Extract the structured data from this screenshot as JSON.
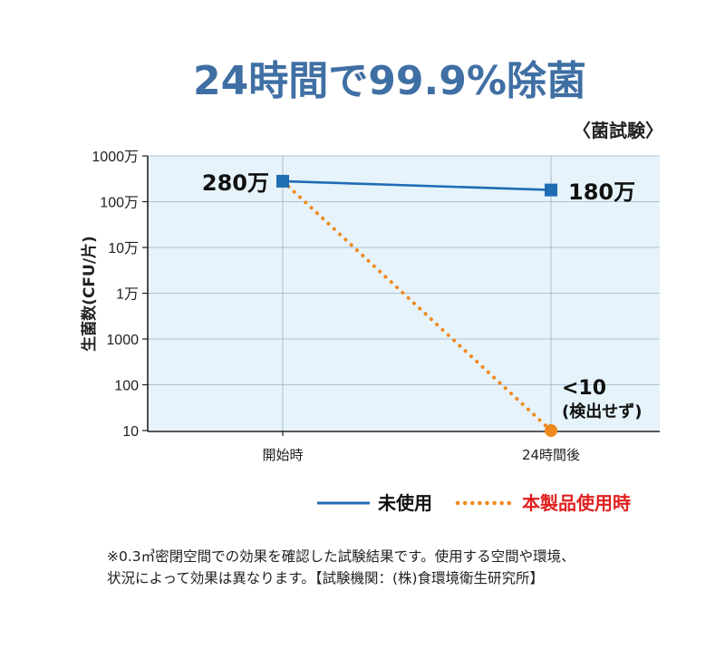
{
  "chart_data": {
    "type": "line",
    "title": "24時間で99.9%除菌",
    "subtitle": "〈菌試験〉",
    "ylabel": "生菌数(CFU/片)",
    "xlabel": "",
    "categories": [
      "開始時",
      "24時間後"
    ],
    "y_scale": "log",
    "ylim": [
      10,
      10000000
    ],
    "y_ticks": [
      {
        "value": 10000000,
        "label": "1000万"
      },
      {
        "value": 1000000,
        "label": "100万"
      },
      {
        "value": 100000,
        "label": "10万"
      },
      {
        "value": 10000,
        "label": "1万"
      },
      {
        "value": 1000,
        "label": "1000"
      },
      {
        "value": 100,
        "label": "100"
      },
      {
        "value": 10,
        "label": "10"
      }
    ],
    "grid": true,
    "series": [
      {
        "name": "未使用",
        "values": [
          2800000,
          1800000
        ],
        "color": "#1f6db3",
        "style": "solid",
        "marker": "square"
      },
      {
        "name": "本製品使用時",
        "values": [
          2800000,
          10
        ],
        "color": "#ef8a1e",
        "style": "dotted",
        "marker": "circle"
      }
    ],
    "data_labels": {
      "start": "280万",
      "end_unused": "180万"
    },
    "annotation": {
      "line1": "<10",
      "line2": "(検出せず)"
    },
    "legend": {
      "position": "bottom-right",
      "label_colors": [
        "#111111",
        "#e02020"
      ]
    }
  },
  "footnote": {
    "line1": "※0.3㎥密閉空間での効果を確認した試験結果です。使用する空間や環境、",
    "line2": "状況によって効果は異なります。【試験機関：(株)食環境衛生研究所】"
  },
  "colors": {
    "plot_bg": "#e6f3fb",
    "grid": "#9ab0c6",
    "title": "#3f6fa3"
  }
}
